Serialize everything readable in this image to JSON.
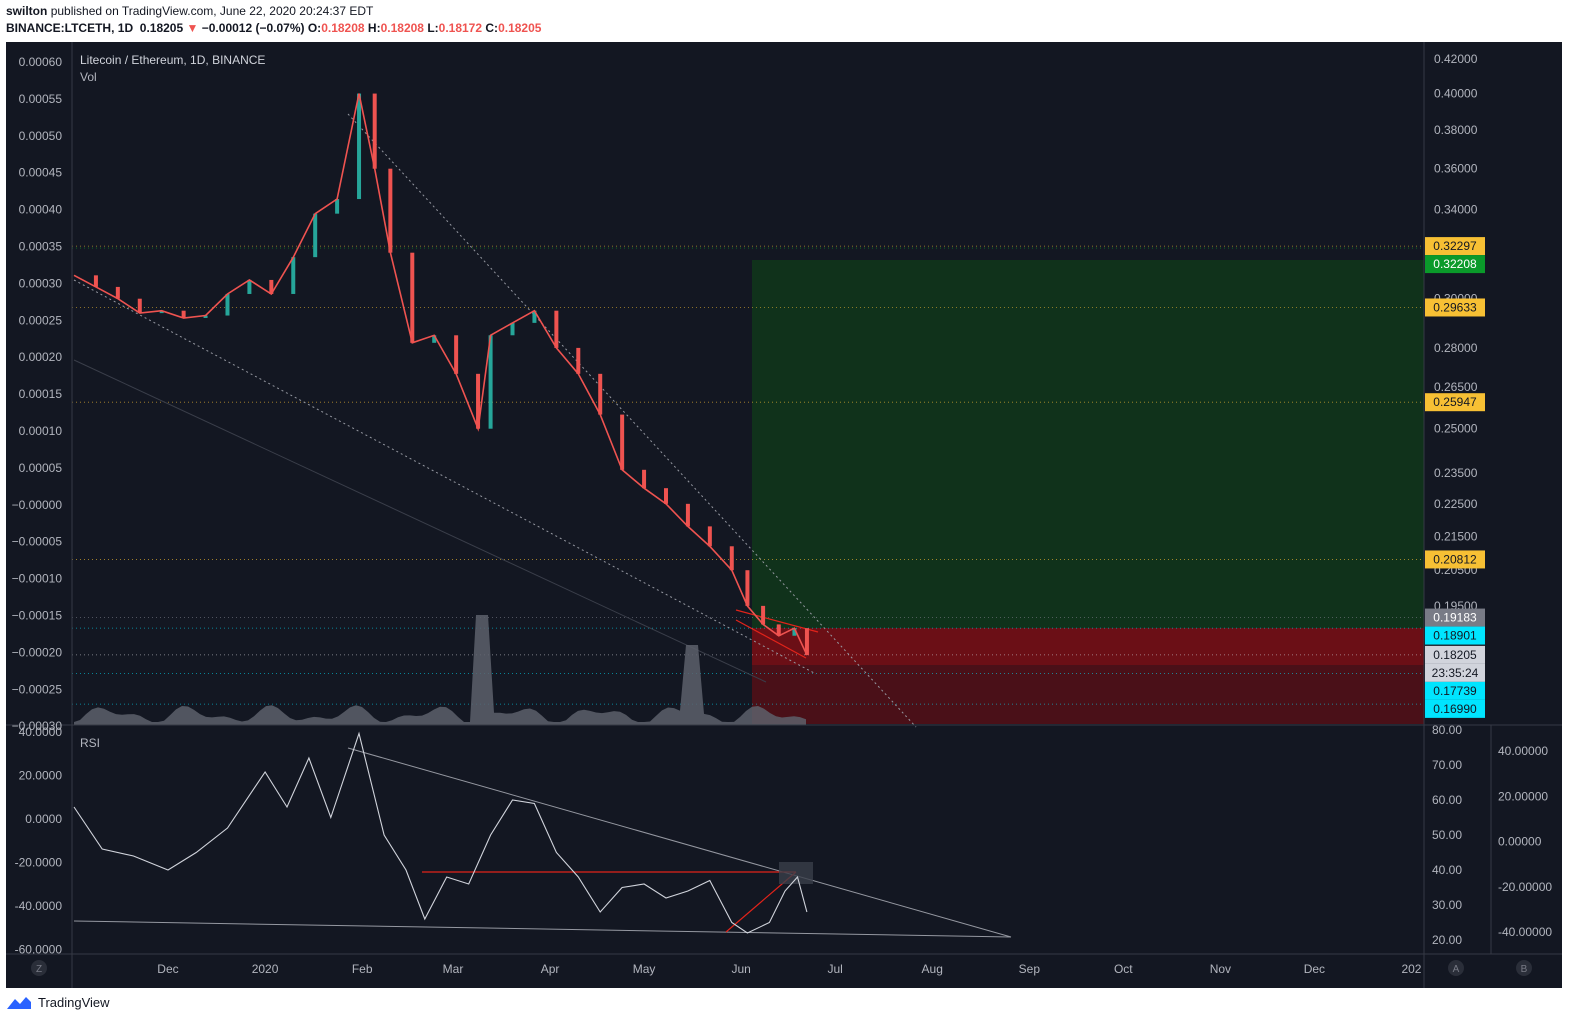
{
  "header": {
    "author": "swilton",
    "published_text": "published on TradingView.com, June 22, 2020 20:24:37 EDT",
    "symbol": "BINANCE:LTCETH, 1D",
    "last_price": "0.18205",
    "change_arrow": "▼",
    "change": "−0.00012 (−0.07%)",
    "o_label": "O:",
    "o": "0.18208",
    "h_label": "H:",
    "h": "0.18208",
    "l_label": "L:",
    "l": "0.18172",
    "c_label": "C:",
    "c": "0.18205"
  },
  "main_pane": {
    "title": "Litecoin / Ethereum, 1D, BINANCE",
    "volume_label": "Vol",
    "left_axis_ticks": [
      "0.00060",
      "0.00055",
      "0.00050",
      "0.00045",
      "0.00040",
      "0.00035",
      "0.00030",
      "0.00025",
      "0.00020",
      "0.00015",
      "0.00010",
      "0.00005",
      "−0.00000",
      "−0.00005",
      "−0.00010",
      "−0.00015",
      "−0.00020",
      "−0.00025",
      "−0.00030"
    ],
    "right_axis_ticks": [
      "0.42000",
      "0.40000",
      "0.38000",
      "0.36000",
      "0.34000",
      "0.30000",
      "0.28000",
      "0.26500",
      "0.25000",
      "0.23500",
      "0.22500",
      "0.21500",
      "0.20500",
      "0.19500"
    ],
    "price_badges": [
      {
        "text": "0.32297",
        "color": "#f7c034",
        "text_color": "#131722"
      },
      {
        "text": "0.32208",
        "color": "#0a9a2a",
        "text_color": "#ffffff"
      },
      {
        "text": "0.29633",
        "color": "#f7c034",
        "text_color": "#131722"
      },
      {
        "text": "0.25947",
        "color": "#f7c034",
        "text_color": "#131722"
      },
      {
        "text": "0.20812",
        "color": "#f7c034",
        "text_color": "#131722"
      },
      {
        "text": "0.19183",
        "color": "#787b86",
        "text_color": "#ffffff"
      },
      {
        "text": "0.18901",
        "color": "#00e5ff",
        "text_color": "#131722"
      },
      {
        "text": "0.18205",
        "color": "#d1d4dc",
        "text_color": "#131722"
      },
      {
        "text": "23:35:24",
        "color": "#d1d4dc",
        "text_color": "#131722"
      },
      {
        "text": "0.17739",
        "color": "#00e5ff",
        "text_color": "#131722"
      },
      {
        "text": "0.16990",
        "color": "#00e5ff",
        "text_color": "#131722"
      }
    ]
  },
  "rsi_pane": {
    "title": "RSI",
    "left_axis_ticks": [
      "40.0000",
      "20.0000",
      "0.0000",
      "-20.0000",
      "-40.0000",
      "-60.0000"
    ],
    "mid_axis_ticks": [
      "80.00",
      "70.00",
      "60.00",
      "50.00",
      "40.00",
      "30.00",
      "20.00"
    ],
    "right_axis_ticks": [
      "40.00000",
      "20.00000",
      "0.00000",
      "-20.00000",
      "-40.00000"
    ]
  },
  "time_axis": {
    "labels": [
      "Dec",
      "2020",
      "Feb",
      "Mar",
      "Apr",
      "May",
      "Jun",
      "Jul",
      "Aug",
      "Sep",
      "Oct",
      "Nov",
      "Dec",
      "202"
    ],
    "corner_left": "Z",
    "corner_a": "A",
    "corner_b": "B"
  },
  "footer": {
    "brand": "TradingView"
  },
  "colors": {
    "background": "#131722",
    "up": "#26a69a",
    "down": "#ef5350",
    "target_zone": "#10321b",
    "stop_zone": "#4a1018",
    "entry_zone": "#6b0f16",
    "rsi_line": "#d1d4dc",
    "trend_red": "#e2231a"
  },
  "chart_data": [
    {
      "type": "candlestick",
      "title": "Litecoin / Ethereum, 1D, BINANCE",
      "x_range": [
        "2019-11-01",
        "2021-01-05"
      ],
      "price_scale": "log",
      "y_range": [
        0.165,
        0.43
      ],
      "series": [
        {
          "name": "LTCETH",
          "points": [
            [
              "2019-11-01",
              0.31
            ],
            [
              "2019-11-08",
              0.305
            ],
            [
              "2019-11-15",
              0.3
            ],
            [
              "2019-11-22",
              0.294
            ],
            [
              "2019-11-29",
              0.295
            ],
            [
              "2019-12-06",
              0.292
            ],
            [
              "2019-12-13",
              0.293
            ],
            [
              "2019-12-20",
              0.302
            ],
            [
              "2019-12-27",
              0.308
            ],
            [
              "2020-01-03",
              0.302
            ],
            [
              "2020-01-10",
              0.318
            ],
            [
              "2020-01-17",
              0.338
            ],
            [
              "2020-01-24",
              0.345
            ],
            [
              "2020-01-31",
              0.4
            ],
            [
              "2020-02-05",
              0.36
            ],
            [
              "2020-02-10",
              0.32
            ],
            [
              "2020-02-17",
              0.282
            ],
            [
              "2020-02-24",
              0.285
            ],
            [
              "2020-03-02",
              0.27
            ],
            [
              "2020-03-09",
              0.25
            ],
            [
              "2020-03-13",
              0.285
            ],
            [
              "2020-03-20",
              0.29
            ],
            [
              "2020-03-27",
              0.295
            ],
            [
              "2020-04-03",
              0.28
            ],
            [
              "2020-04-10",
              0.27
            ],
            [
              "2020-04-17",
              0.255
            ],
            [
              "2020-04-24",
              0.236
            ],
            [
              "2020-05-01",
              0.23
            ],
            [
              "2020-05-08",
              0.225
            ],
            [
              "2020-05-15",
              0.218
            ],
            [
              "2020-05-22",
              0.212
            ],
            [
              "2020-05-29",
              0.205
            ],
            [
              "2020-06-03",
              0.195
            ],
            [
              "2020-06-08",
              0.19
            ],
            [
              "2020-06-13",
              0.187
            ],
            [
              "2020-06-18",
              0.189
            ],
            [
              "2020-06-22",
              0.182
            ]
          ]
        }
      ],
      "levels": [
        0.32297,
        0.32208,
        0.29633,
        0.25947,
        0.20812,
        0.19183,
        0.18901,
        0.18205,
        0.17739,
        0.1699
      ],
      "zones": [
        {
          "name": "target",
          "from": 0.19183,
          "to": 0.32297,
          "start": "2020-06-03"
        },
        {
          "name": "entry",
          "from": 0.18205,
          "to": 0.19183,
          "start": "2020-06-03"
        },
        {
          "name": "stop",
          "from": 0.165,
          "to": 0.18205,
          "start": "2020-06-03"
        }
      ]
    },
    {
      "type": "line",
      "title": "RSI",
      "y_range": [
        20,
        80
      ],
      "series": [
        {
          "name": "RSI",
          "points": [
            [
              "2019-11-01",
              58
            ],
            [
              "2019-11-10",
              46
            ],
            [
              "2019-11-20",
              44
            ],
            [
              "2019-12-01",
              40
            ],
            [
              "2019-12-10",
              45
            ],
            [
              "2019-12-20",
              52
            ],
            [
              "2020-01-01",
              68
            ],
            [
              "2020-01-08",
              58
            ],
            [
              "2020-01-15",
              72
            ],
            [
              "2020-01-22",
              55
            ],
            [
              "2020-01-31",
              79
            ],
            [
              "2020-02-08",
              50
            ],
            [
              "2020-02-15",
              40
            ],
            [
              "2020-02-21",
              26
            ],
            [
              "2020-02-28",
              38
            ],
            [
              "2020-03-06",
              36
            ],
            [
              "2020-03-13",
              50
            ],
            [
              "2020-03-20",
              60
            ],
            [
              "2020-03-27",
              59
            ],
            [
              "2020-04-03",
              45
            ],
            [
              "2020-04-10",
              38
            ],
            [
              "2020-04-17",
              28
            ],
            [
              "2020-04-24",
              35
            ],
            [
              "2020-05-01",
              36
            ],
            [
              "2020-05-08",
              32
            ],
            [
              "2020-05-15",
              34
            ],
            [
              "2020-05-22",
              37
            ],
            [
              "2020-05-29",
              25
            ],
            [
              "2020-06-03",
              22
            ],
            [
              "2020-06-10",
              25
            ],
            [
              "2020-06-15",
              34
            ],
            [
              "2020-06-19",
              38
            ],
            [
              "2020-06-22",
              28
            ]
          ]
        }
      ]
    }
  ]
}
